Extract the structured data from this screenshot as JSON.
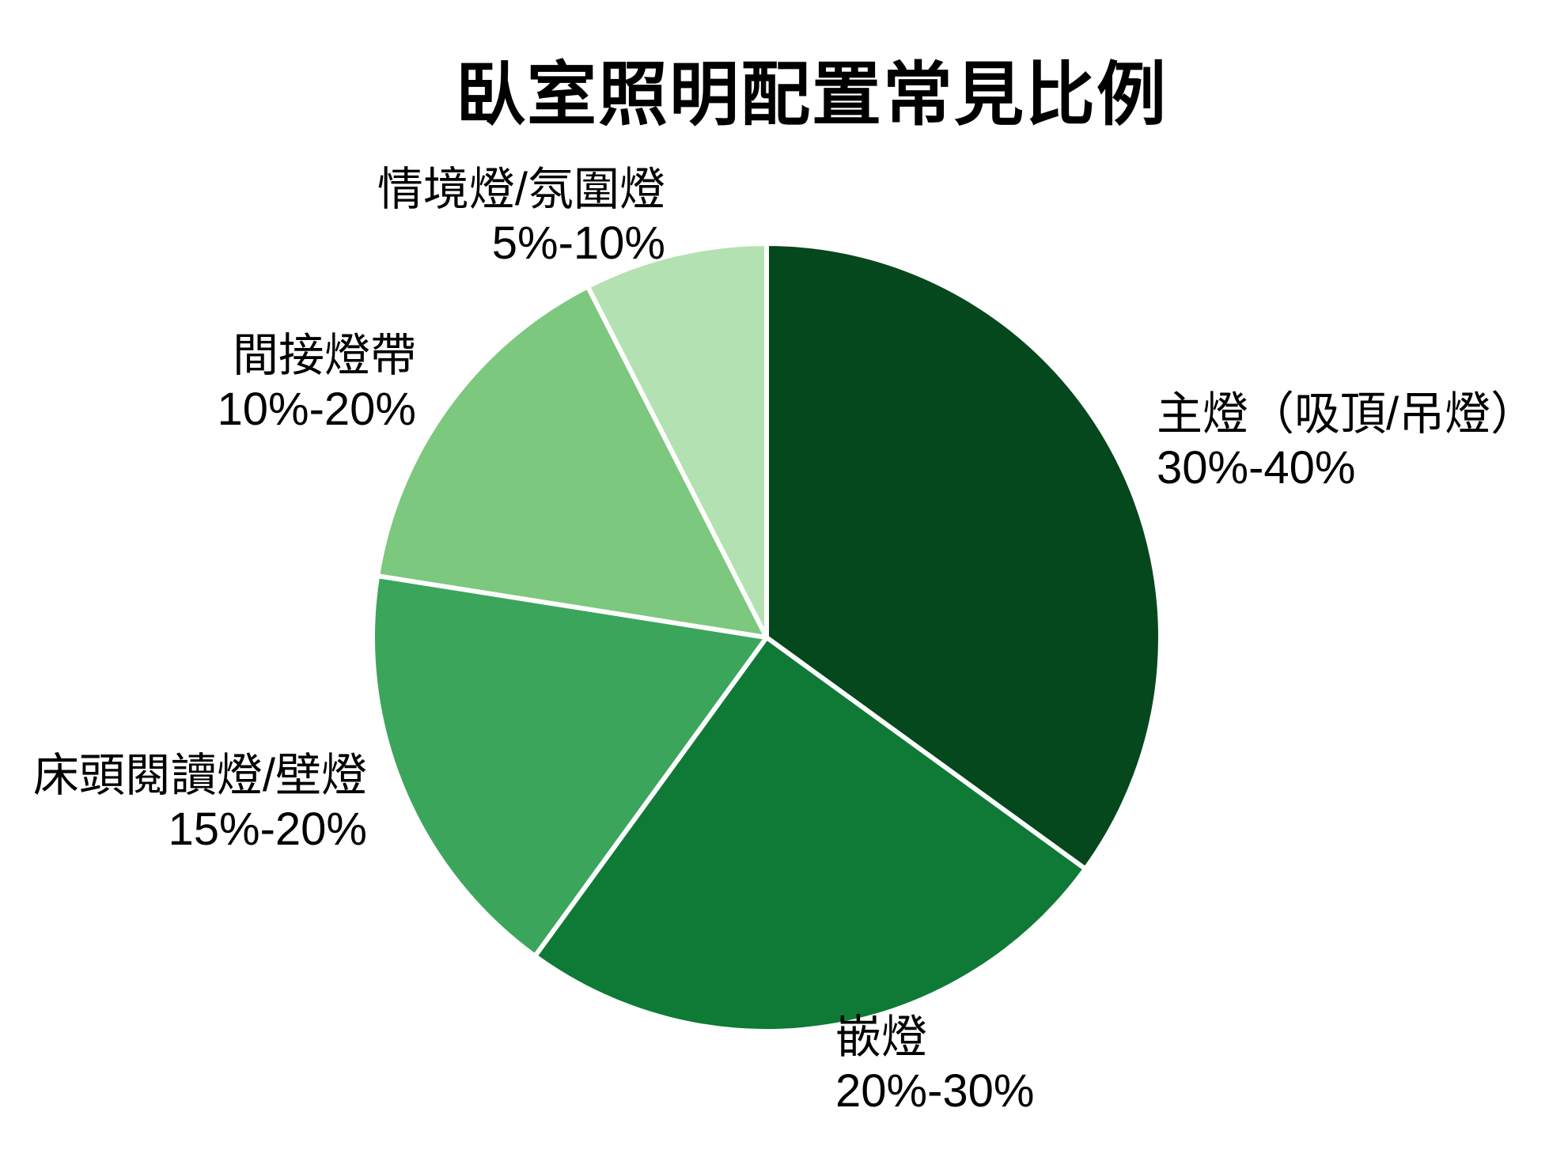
{
  "title": "臥室照明配置常見比例",
  "chart_data": {
    "type": "pie",
    "title": "臥室照明配置常見比例",
    "start_angle": "12 o'clock",
    "direction": "clockwise",
    "legend_position": "none (direct outside labels)",
    "stroke_color": "#ffffff",
    "slices": [
      {
        "label": "主燈（吸頂/吊燈）",
        "range": "30%-40%",
        "value": 35,
        "color": "#05481d"
      },
      {
        "label": "嵌燈",
        "range": "20%-30%",
        "value": 25,
        "color": "#0e7a36"
      },
      {
        "label": "床頭閱讀燈/壁燈",
        "range": "15%-20%",
        "value": 17.5,
        "color": "#3ba55c"
      },
      {
        "label": "間接燈帶",
        "range": "10%-20%",
        "value": 15,
        "color": "#7cc87e"
      },
      {
        "label": "情境燈/氛圍燈",
        "range": "5%-10%",
        "value": 7.5,
        "color": "#b4e1b2"
      }
    ]
  }
}
